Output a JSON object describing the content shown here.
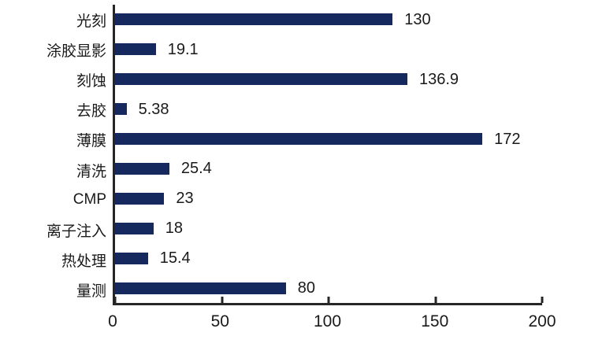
{
  "chart_data": {
    "type": "bar",
    "orientation": "horizontal",
    "title": "",
    "xlabel": "",
    "ylabel": "",
    "categories": [
      "光刻",
      "涂胶显影",
      "刻蚀",
      "去胶",
      "薄膜",
      "清洗",
      "CMP",
      "离子注入",
      "热处理",
      "量测"
    ],
    "values": [
      130,
      19.1,
      136.9,
      5.38,
      172,
      25.4,
      23,
      18,
      15.4,
      80
    ],
    "value_labels": [
      "130",
      "19.1",
      "136.9",
      "5.38",
      "172",
      "25.4",
      "23",
      "18",
      "15.4",
      "80"
    ],
    "xlim": [
      0,
      200
    ],
    "x_ticks": [
      0,
      50,
      100,
      150,
      200
    ],
    "x_tick_labels": [
      "0",
      "50",
      "100",
      "150",
      "200"
    ],
    "grid": false,
    "legend": "none",
    "bar_color": "#15295e",
    "axis_color": "#262626",
    "text_color": "#1a1a1a"
  }
}
